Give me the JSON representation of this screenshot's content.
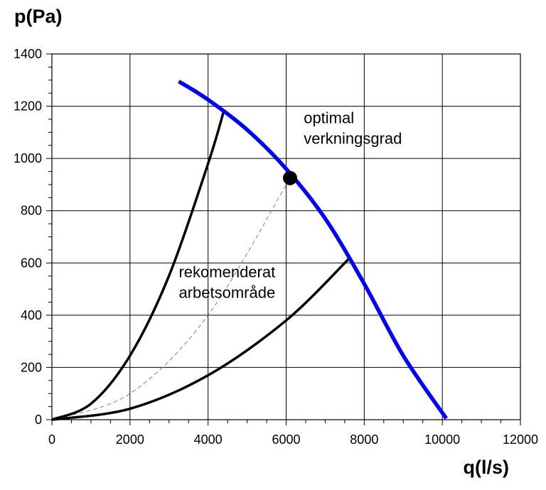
{
  "chart_data": {
    "type": "line",
    "title": "",
    "xlabel": "q(l/s)",
    "ylabel": "p(Pa)",
    "xlim": [
      0,
      12000
    ],
    "ylim": [
      0,
      1400
    ],
    "x_ticks": [
      0,
      2000,
      4000,
      6000,
      8000,
      10000,
      12000
    ],
    "y_ticks": [
      0,
      200,
      400,
      600,
      800,
      1000,
      1200,
      1400
    ],
    "grid": true,
    "series": [
      {
        "color": "#0000ff",
        "style": "solid",
        "points": [
          [
            3250,
            1295
          ],
          [
            4000,
            1225
          ],
          [
            5000,
            1110
          ],
          [
            6000,
            960
          ],
          [
            7000,
            770
          ],
          [
            8000,
            520
          ],
          [
            9000,
            245
          ],
          [
            10100,
            5
          ]
        ]
      },
      {
        "color": "#000000",
        "style": "solid",
        "points": [
          [
            0,
            0
          ],
          [
            1000,
            61
          ],
          [
            2000,
            245
          ],
          [
            3000,
            551
          ],
          [
            4000,
            980
          ],
          [
            4400,
            1180
          ]
        ]
      },
      {
        "color": "#000000",
        "style": "solid",
        "points": [
          [
            0,
            0
          ],
          [
            2000,
            42
          ],
          [
            4000,
            170
          ],
          [
            6000,
            380
          ],
          [
            7600,
            615
          ]
        ]
      },
      {
        "color": "#808080",
        "style": "dashed",
        "points": [
          [
            0,
            0
          ],
          [
            2000,
            100
          ],
          [
            4000,
            400
          ],
          [
            6100,
            925
          ]
        ]
      }
    ],
    "markers": [
      {
        "x": 6100,
        "y": 925,
        "color": "#000000"
      }
    ],
    "annotations": [
      {
        "lines": [
          "optimal",
          "verkningsgrad"
        ],
        "x": 6450,
        "y": 1135
      },
      {
        "lines": [
          "rekomenderat",
          "arbetsområde"
        ],
        "x": 3250,
        "y": 545
      }
    ]
  }
}
